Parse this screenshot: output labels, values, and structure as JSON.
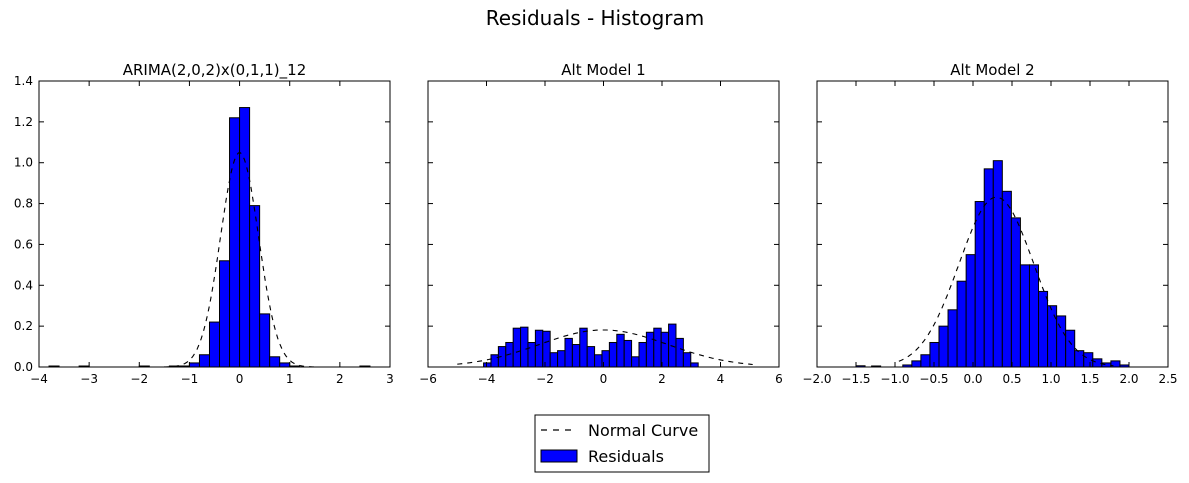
{
  "suptitle": "Residuals - Histogram",
  "legend": {
    "items": [
      {
        "label": "Normal Curve",
        "style": "dashed-line"
      },
      {
        "label": "Residuals",
        "style": "blue-patch"
      }
    ],
    "placement": "bottom-center"
  },
  "colors": {
    "bar_fill": "#0000ff",
    "bar_edge": "#000000",
    "curve": "#000000"
  },
  "chart_data": [
    {
      "type": "bar",
      "title": "ARIMA(2,0,2)x(0,1,1)_12",
      "xlim": [
        -4,
        3
      ],
      "ylim": [
        0,
        1.4
      ],
      "xticks": [
        "−4",
        "−3",
        "−2",
        "−1",
        "0",
        "1",
        "2",
        "3"
      ],
      "xtick_values": [
        -4,
        -3,
        -2,
        -1,
        0,
        1,
        2,
        3
      ],
      "yticks": [
        "0.0",
        "0.2",
        "0.4",
        "0.6",
        "0.8",
        "1.0",
        "1.2",
        "1.4"
      ],
      "ytick_values": [
        0,
        0.2,
        0.4,
        0.6,
        0.8,
        1.0,
        1.2,
        1.4
      ],
      "show_ytick_labels": true,
      "bin_start": -1.0,
      "bin_width": 0.2,
      "values": [
        0.02,
        0.06,
        0.22,
        0.52,
        1.22,
        1.27,
        0.79,
        0.26,
        0.05,
        0.02
      ],
      "outlier_bins": [
        {
          "x0": -3.8,
          "h": 0.004
        },
        {
          "x0": -3.2,
          "h": 0.004
        },
        {
          "x0": -2.0,
          "h": 0.004
        },
        {
          "x0": -1.4,
          "h": 0.004
        },
        {
          "x0": -1.2,
          "h": 0.005
        },
        {
          "x0": 1.0,
          "h": 0.005
        },
        {
          "x0": 2.4,
          "h": 0.004
        }
      ],
      "normal_curve": {
        "mean": 0.0,
        "std": 0.38,
        "x_range": [
          -3.9,
          2.7
        ]
      }
    },
    {
      "type": "bar",
      "title": "Alt Model 1",
      "xlim": [
        -6,
        6
      ],
      "ylim": [
        0,
        1.4
      ],
      "xticks": [
        "−6",
        "−4",
        "−2",
        "0",
        "2",
        "4",
        "6"
      ],
      "xtick_values": [
        -6,
        -4,
        -2,
        0,
        2,
        4,
        6
      ],
      "yticks": [],
      "ytick_values": [
        0,
        0.2,
        0.4,
        0.6,
        0.8,
        1.0,
        1.2,
        1.4
      ],
      "show_ytick_labels": false,
      "bin_start": -4.1,
      "bin_width": 0.253,
      "values": [
        0.02,
        0.06,
        0.1,
        0.12,
        0.19,
        0.195,
        0.12,
        0.18,
        0.175,
        0.07,
        0.08,
        0.14,
        0.11,
        0.19,
        0.1,
        0.06,
        0.08,
        0.12,
        0.16,
        0.13,
        0.05,
        0.12,
        0.17,
        0.19,
        0.17,
        0.21,
        0.14,
        0.07,
        0.02
      ],
      "normal_curve": {
        "mean": 0.0,
        "std": 2.2,
        "x_range": [
          -5.0,
          5.1
        ]
      }
    },
    {
      "type": "bar",
      "title": "Alt Model 2",
      "xlim": [
        -2.0,
        2.5
      ],
      "ylim": [
        0,
        1.4
      ],
      "xticks": [
        "−2.0",
        "−1.5",
        "−1.0",
        "−0.5",
        "0.0",
        "0.5",
        "1.0",
        "1.5",
        "2.0",
        "2.5"
      ],
      "xtick_values": [
        -2.0,
        -1.5,
        -1.0,
        -0.5,
        0.0,
        0.5,
        1.0,
        1.5,
        2.0,
        2.5
      ],
      "yticks": [],
      "ytick_values": [
        0,
        0.2,
        0.4,
        0.6,
        0.8,
        1.0,
        1.2,
        1.4
      ],
      "show_ytick_labels": false,
      "bin_start": -0.9,
      "bin_width": 0.116,
      "values": [
        0.01,
        0.03,
        0.06,
        0.12,
        0.2,
        0.28,
        0.42,
        0.55,
        0.81,
        0.97,
        1.01,
        0.86,
        0.73,
        0.5,
        0.5,
        0.37,
        0.3,
        0.25,
        0.18,
        0.08,
        0.07,
        0.04,
        0.02,
        0.03,
        0.01
      ],
      "outlier_bins": [
        {
          "x0": -1.5,
          "h": 0.006
        },
        {
          "x0": -1.3,
          "h": 0.005
        }
      ],
      "normal_curve": {
        "mean": 0.3,
        "std": 0.48,
        "x_range": [
          -0.95,
          1.8
        ]
      }
    }
  ]
}
